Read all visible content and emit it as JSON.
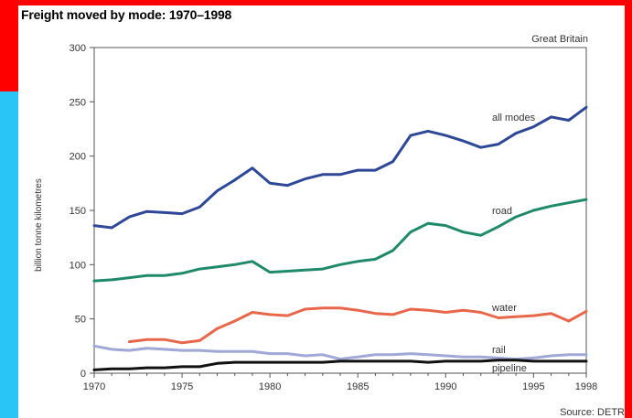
{
  "frame": {
    "border_top_color": "#ff0000",
    "border_left_color": "#29c5f6",
    "background_color": "#000000"
  },
  "chart_data": {
    "type": "line",
    "title": "Freight moved by mode: 1970–1998",
    "subtitle": "Great Britain",
    "source": "Source: DETR",
    "xlabel": "",
    "ylabel": "billion tonne kilometres",
    "xlim": [
      1970,
      1998
    ],
    "ylim": [
      0,
      300
    ],
    "x_ticks": [
      1970,
      1975,
      1980,
      1985,
      1990,
      1995,
      1998
    ],
    "y_ticks": [
      0,
      50,
      100,
      150,
      200,
      250,
      300
    ],
    "grid": false,
    "legend": "inline labels near line ends",
    "series": [
      {
        "name": "all modes",
        "color": "#2e4796",
        "x": [
          1970,
          1971,
          1972,
          1973,
          1974,
          1975,
          1976,
          1977,
          1978,
          1979,
          1980,
          1981,
          1982,
          1983,
          1984,
          1985,
          1986,
          1987,
          1988,
          1989,
          1990,
          1991,
          1992,
          1993,
          1994,
          1995,
          1996,
          1997,
          1998
        ],
        "values": [
          136,
          134,
          144,
          149,
          148,
          147,
          153,
          168,
          178,
          189,
          175,
          173,
          179,
          183,
          183,
          187,
          187,
          195,
          219,
          223,
          219,
          214,
          208,
          211,
          221,
          227,
          236,
          233,
          245
        ]
      },
      {
        "name": "road",
        "color": "#1f8a6a",
        "x": [
          1970,
          1971,
          1972,
          1973,
          1974,
          1975,
          1976,
          1977,
          1978,
          1979,
          1980,
          1981,
          1982,
          1983,
          1984,
          1985,
          1986,
          1987,
          1988,
          1989,
          1990,
          1991,
          1992,
          1993,
          1994,
          1995,
          1996,
          1997,
          1998
        ],
        "values": [
          85,
          86,
          88,
          90,
          90,
          92,
          96,
          98,
          100,
          103,
          93,
          94,
          95,
          96,
          100,
          103,
          105,
          113,
          130,
          138,
          136,
          130,
          127,
          135,
          144,
          150,
          154,
          157,
          160
        ]
      },
      {
        "name": "water",
        "color": "#e8664a",
        "x": [
          1972,
          1973,
          1974,
          1975,
          1976,
          1977,
          1978,
          1979,
          1980,
          1981,
          1982,
          1983,
          1984,
          1985,
          1986,
          1987,
          1988,
          1989,
          1990,
          1991,
          1992,
          1993,
          1994,
          1995,
          1996,
          1997,
          1998
        ],
        "values": [
          29,
          31,
          31,
          28,
          30,
          41,
          48,
          56,
          54,
          53,
          59,
          60,
          60,
          58,
          55,
          54,
          59,
          58,
          56,
          58,
          56,
          51,
          52,
          53,
          55,
          48,
          57
        ]
      },
      {
        "name": "rail",
        "color": "#9fa8d6",
        "x": [
          1970,
          1971,
          1972,
          1973,
          1974,
          1975,
          1976,
          1977,
          1978,
          1979,
          1980,
          1981,
          1982,
          1983,
          1984,
          1985,
          1986,
          1987,
          1988,
          1989,
          1990,
          1991,
          1992,
          1993,
          1994,
          1995,
          1996,
          1997,
          1998
        ],
        "values": [
          25,
          22,
          21,
          23,
          22,
          21,
          21,
          20,
          20,
          20,
          18,
          18,
          16,
          17,
          13,
          15,
          17,
          17,
          18,
          17,
          16,
          15,
          15,
          14,
          13,
          14,
          16,
          17,
          17
        ]
      },
      {
        "name": "pipeline",
        "color": "#111111",
        "x": [
          1970,
          1971,
          1972,
          1973,
          1974,
          1975,
          1976,
          1977,
          1978,
          1979,
          1980,
          1981,
          1982,
          1983,
          1984,
          1985,
          1986,
          1987,
          1988,
          1989,
          1990,
          1991,
          1992,
          1993,
          1994,
          1995,
          1996,
          1997,
          1998
        ],
        "values": [
          3,
          4,
          4,
          5,
          5,
          6,
          6,
          9,
          10,
          10,
          10,
          10,
          10,
          10,
          11,
          11,
          11,
          11,
          11,
          10,
          11,
          11,
          11,
          12,
          12,
          11,
          11,
          11,
          11
        ]
      }
    ]
  }
}
